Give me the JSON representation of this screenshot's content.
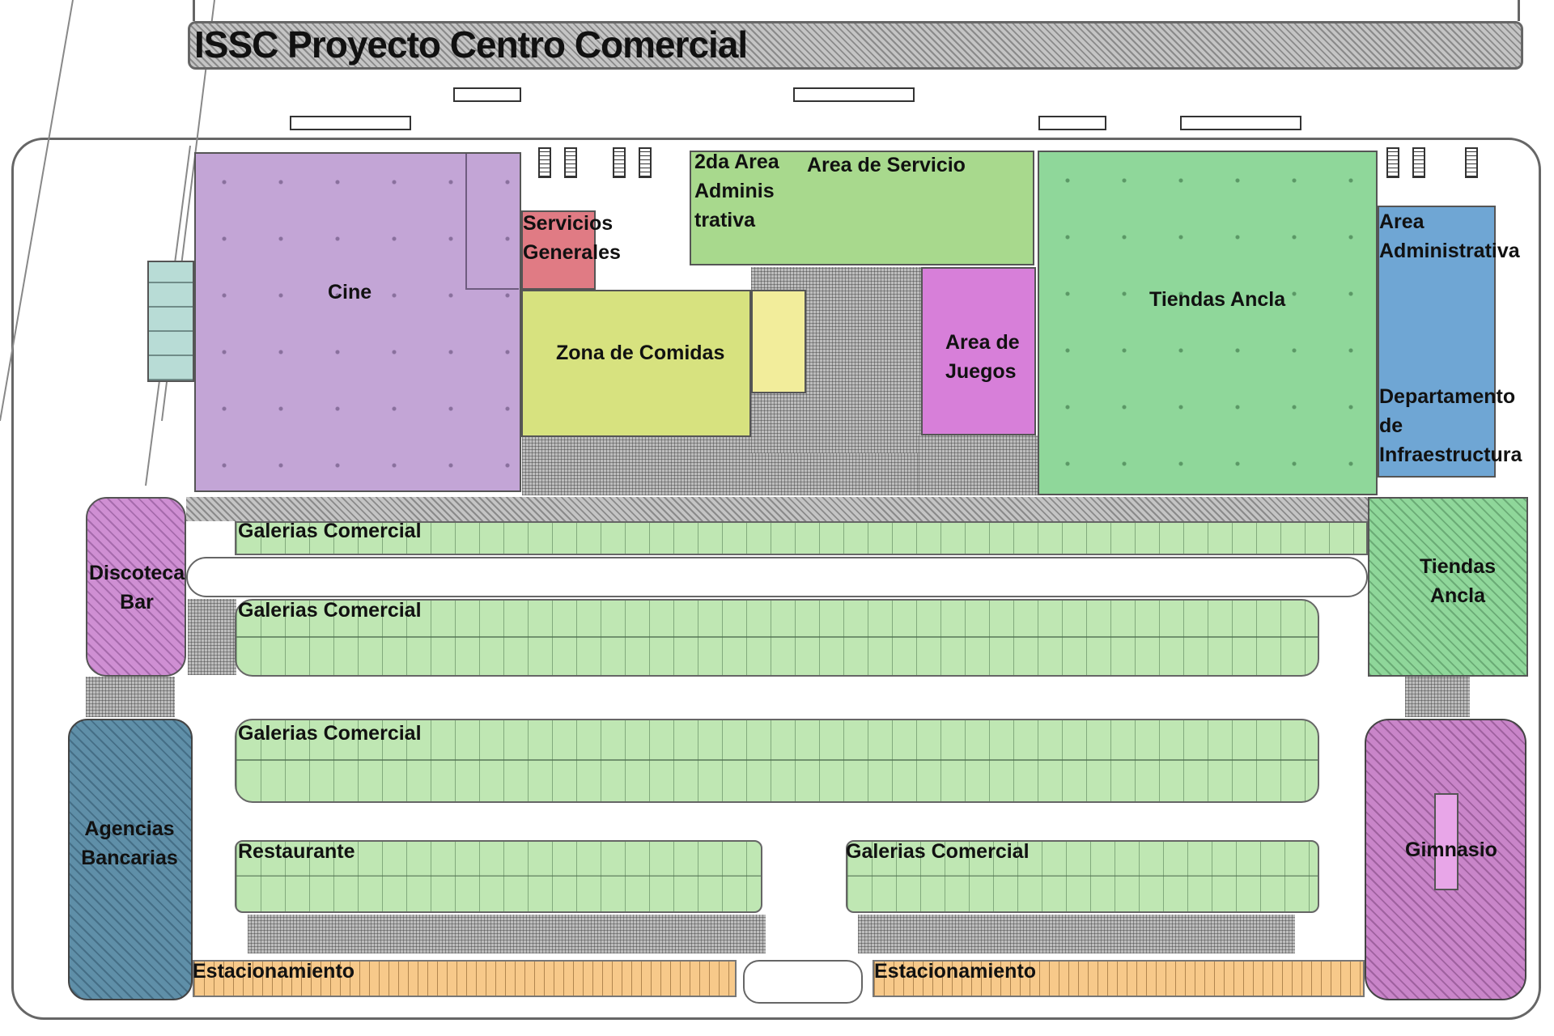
{
  "title": "ISSC Proyecto Centro Comercial",
  "colors": {
    "cine": "#c3a5d6",
    "servicios_generales": "#e07b84",
    "zona_comidas": "#d7e27f",
    "area_servicio": "#a8d98d",
    "area_juegos": "#d77fd9",
    "tiendas_ancla": "#8fd79a",
    "area_administrativa": "#6fa6d4",
    "discoteca": "#cf8fd3",
    "agencias": "#5f8fa8",
    "gimnasio": "#c985c9",
    "galerias": "#bfe7b3",
    "estacionamiento": "#f7c98a"
  },
  "zones": {
    "cine": "Cine",
    "servicios_generales": "Servicios\nGenerales",
    "segunda_area_admin": "2da Area\nAdminis\ntrativa",
    "area_servicio": "Area de Servicio",
    "zona_comidas": "Zona de Comidas",
    "area_juegos": "Area de\nJuegos",
    "tiendas_ancla_main": "Tiendas Ancla",
    "area_administrativa": "Area\nAdministrativa",
    "departamento_infra": "Departamento\nde\nInfraestructura",
    "discoteca_bar": "Discoteca\nBar",
    "tiendas_ancla_side": "Tiendas\nAncla",
    "galerias_1": "Galerias Comercial",
    "galerias_2": "Galerias Comercial",
    "galerias_3": "Galerias Comercial",
    "restaurante": "Restaurante",
    "galerias_4": "Galerias Comercial",
    "agencias_bancarias": "Agencias\nBancarias",
    "gimnasio": "Gimnasio",
    "estacionamiento_1": "Estacionamiento",
    "estacionamiento_2": "Estacionamiento"
  }
}
